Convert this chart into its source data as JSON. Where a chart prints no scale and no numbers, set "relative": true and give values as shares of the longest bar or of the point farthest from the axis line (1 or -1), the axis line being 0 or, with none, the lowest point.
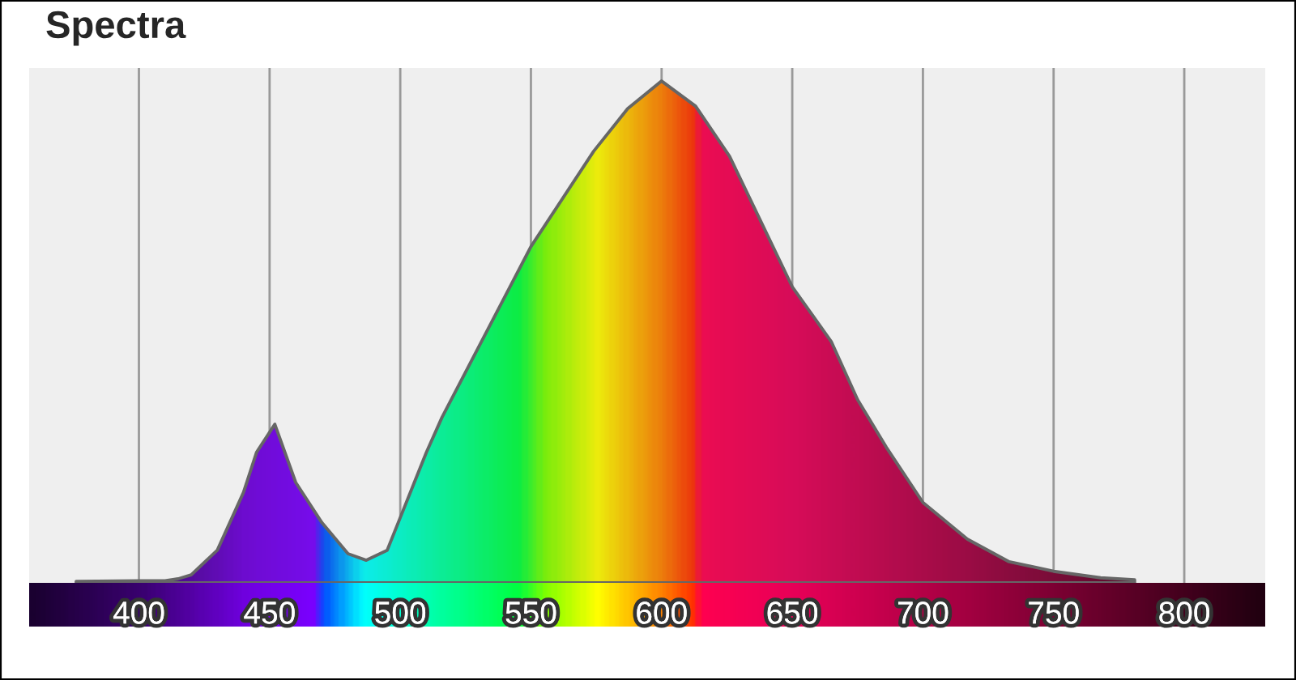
{
  "chart_data": {
    "type": "area",
    "title": "Spectra",
    "relative": true,
    "x": [
      376,
      400,
      410,
      415,
      420,
      430,
      440,
      445,
      452,
      460,
      470,
      480,
      487,
      495,
      500,
      510,
      516,
      530,
      550,
      574,
      587,
      600,
      613,
      626,
      650,
      665,
      675,
      686,
      700,
      717,
      733,
      750,
      768,
      781
    ],
    "series": [
      {
        "color": "#666666",
        "values": [
          0.003,
          0.004,
          0.004,
          0.008,
          0.016,
          0.065,
          0.18,
          0.26,
          0.316,
          0.2,
          0.12,
          0.058,
          0.045,
          0.065,
          0.13,
          0.26,
          0.33,
          0.47,
          0.67,
          0.86,
          0.945,
          1.0,
          0.95,
          0.85,
          0.59,
          0.48,
          0.365,
          0.27,
          0.16,
          0.087,
          0.042,
          0.023,
          0.01,
          0.006
        ]
      }
    ],
    "xlim": [
      358,
      831
    ],
    "xticks": [
      400,
      450,
      500,
      550,
      600,
      650,
      700,
      750,
      800
    ],
    "grid": "x",
    "legend": false
  }
}
